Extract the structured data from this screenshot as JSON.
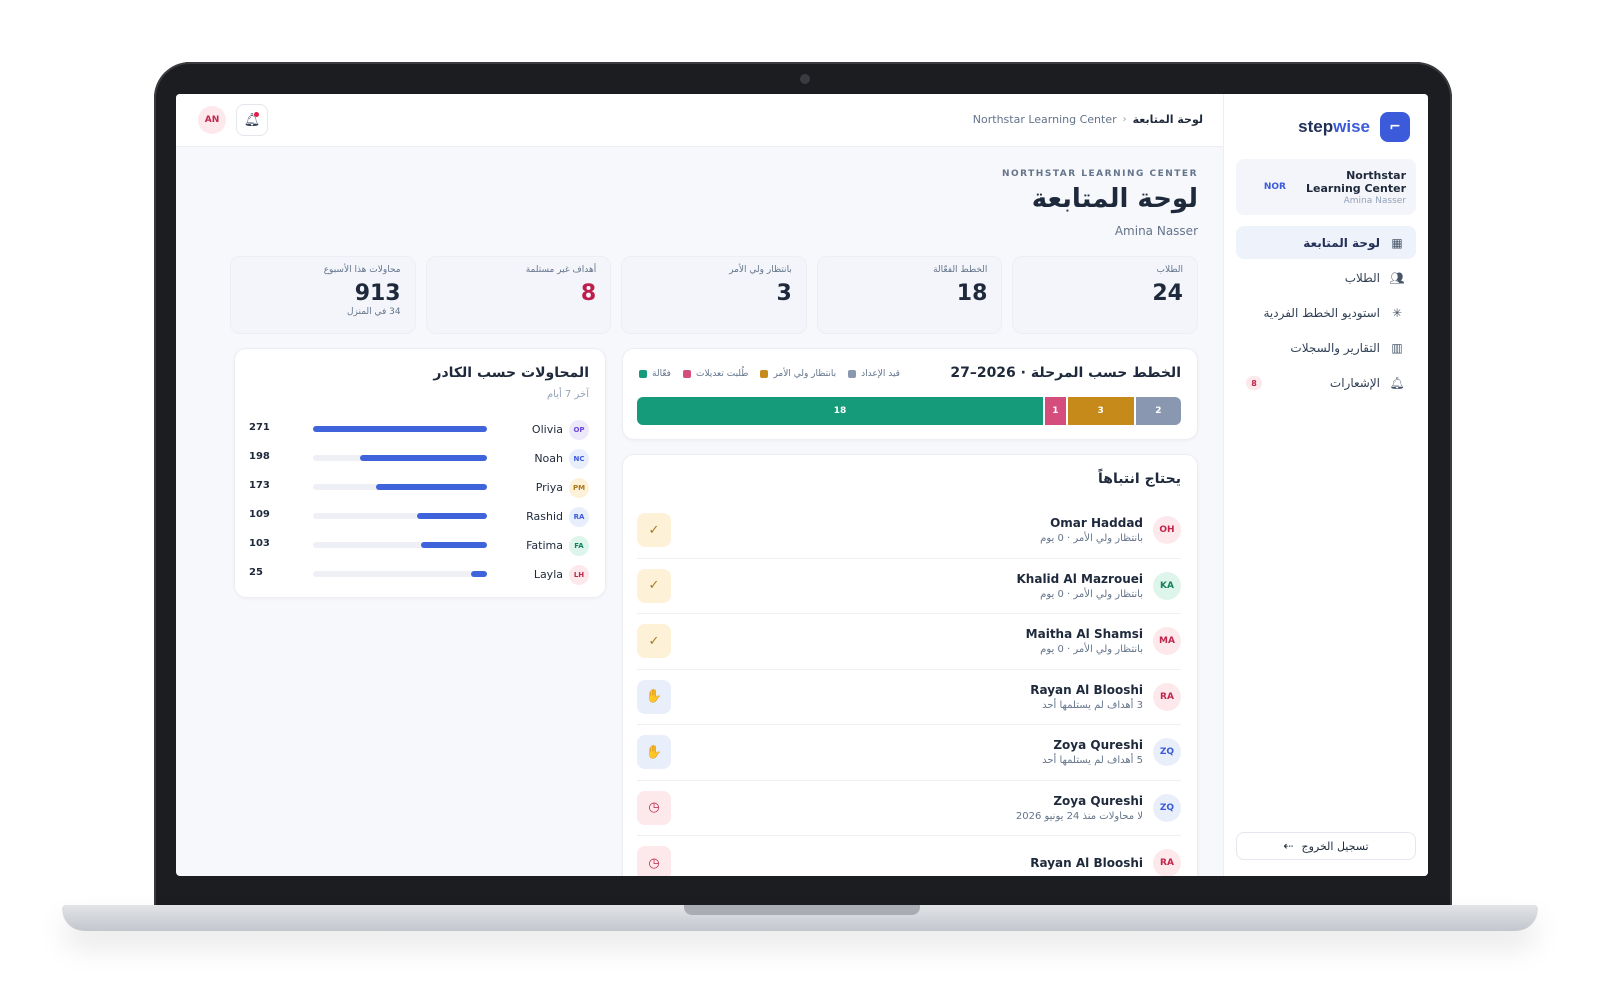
{
  "brand": {
    "name_prefix": "step",
    "name_suffix": "wise"
  },
  "org": {
    "abbr": "NOR",
    "name": "Northstar Learning Center",
    "user": "Amina Nasser"
  },
  "nav": [
    {
      "label": "لوحة المتابعة",
      "icon": "grid-icon",
      "active": true
    },
    {
      "label": "الطلاب",
      "icon": "users-icon"
    },
    {
      "label": "استوديو الخطط الفردية",
      "icon": "sparkle-icon"
    },
    {
      "label": "التقارير والسجلات",
      "icon": "bar-chart-icon"
    },
    {
      "label": "الإشعارات",
      "icon": "bell-icon",
      "badge": "8"
    }
  ],
  "logout_label": "تسجيل الخروج",
  "breadcrumb": {
    "org": "Northstar Learning Center",
    "current": "لوحة المتابعة"
  },
  "top_avatar": "AN",
  "header": {
    "overline": "NORTHSTAR LEARNING CENTER",
    "title": "لوحة المتابعة",
    "user": "Amina Nasser"
  },
  "stats": [
    {
      "label": "الطلاب",
      "value": "24",
      "sub": ""
    },
    {
      "label": "الخطط الفعّالة",
      "value": "18",
      "sub": ""
    },
    {
      "label": "بانتظار ولي الأمر",
      "value": "3",
      "sub": ""
    },
    {
      "label": "أهداف غير مستلمة",
      "value": "8",
      "sub": "",
      "accent": "#be1d4b"
    },
    {
      "label": "محاولات هذا الأسبوع",
      "value": "913",
      "sub": "34 في المنزل"
    }
  ],
  "plans": {
    "title": "الخطط حسب المرحلة · 2026–27",
    "legend": [
      {
        "label": "قيد الإعداد",
        "color": "#8a97b1"
      },
      {
        "label": "بانتظار ولي الأمر",
        "color": "#c58a1a"
      },
      {
        "label": "طُلبت تعديلات",
        "color": "#d44d7c"
      },
      {
        "label": "فعّالة",
        "color": "#159a7a"
      }
    ],
    "segments": [
      {
        "label": "18",
        "value": 18,
        "color": "#159a7a"
      },
      {
        "label": "1",
        "value": 1,
        "color": "#d44d7c"
      },
      {
        "label": "3",
        "value": 3,
        "color": "#c58a1a"
      },
      {
        "label": "2",
        "value": 2,
        "color": "#8a97b1"
      }
    ]
  },
  "attention": {
    "title": "يحتاج انتباهاً",
    "items": [
      {
        "initials": "OH",
        "name": "Omar Haddad",
        "sub": "بانتظار ولي الأمر · 0 يوم",
        "avatar_bg": "#fde8ec",
        "avatar_fg": "#c0264b",
        "action": "check-icon",
        "action_glyph": "✓",
        "action_style": "amber"
      },
      {
        "initials": "KA",
        "name": "Khalid Al Mazrouei",
        "sub": "بانتظار ولي الأمر · 0 يوم",
        "avatar_bg": "#def5ec",
        "avatar_fg": "#14805f",
        "action": "check-icon",
        "action_glyph": "✓",
        "action_style": "amber"
      },
      {
        "initials": "MA",
        "name": "Maitha Al Shamsi",
        "sub": "بانتظار ولي الأمر · 0 يوم",
        "avatar_bg": "#fde8ec",
        "avatar_fg": "#c0264b",
        "action": "check-icon",
        "action_glyph": "✓",
        "action_style": "amber"
      },
      {
        "initials": "RA",
        "name": "Rayan Al Blooshi",
        "sub": "3 أهداف لم يستلمها أحد",
        "avatar_bg": "#fde8ec",
        "avatar_fg": "#c0264b",
        "action": "hand-icon",
        "action_glyph": "✋",
        "action_style": "blue"
      },
      {
        "initials": "ZQ",
        "name": "Zoya Qureshi",
        "sub": "5 أهداف لم يستلمها أحد",
        "avatar_bg": "#e9eefb",
        "avatar_fg": "#3b5bdb",
        "action": "hand-icon",
        "action_glyph": "✋",
        "action_style": "blue"
      },
      {
        "initials": "ZQ",
        "name": "Zoya Qureshi",
        "sub": "لا محاولات منذ 24 يونيو 2026",
        "avatar_bg": "#e9eefb",
        "avatar_fg": "#3b5bdb",
        "action": "clock-icon",
        "action_glyph": "◷",
        "action_style": "pink"
      },
      {
        "initials": "RA",
        "name": "Rayan Al Blooshi",
        "sub": "",
        "avatar_bg": "#fde8ec",
        "avatar_fg": "#c0264b",
        "action": "clock-icon",
        "action_glyph": "◷",
        "action_style": "pink"
      }
    ]
  },
  "staff": {
    "title": "المحاولات حسب الكادر",
    "subtitle": "آخر 7 أيام",
    "max": 271,
    "rows": [
      {
        "initials": "OP",
        "name": "Olivia",
        "value": 271,
        "avatar_bg": "#ede9fb",
        "avatar_fg": "#6b47d6"
      },
      {
        "initials": "NC",
        "name": "Noah",
        "value": 198,
        "avatar_bg": "#e9eefb",
        "avatar_fg": "#3b5bdb"
      },
      {
        "initials": "PM",
        "name": "Priya",
        "value": 173,
        "avatar_bg": "#fdf1d8",
        "avatar_fg": "#a7791b"
      },
      {
        "initials": "RA",
        "name": "Rashid",
        "value": 109,
        "avatar_bg": "#e9eefb",
        "avatar_fg": "#3b5bdb"
      },
      {
        "initials": "FA",
        "name": "Fatima",
        "value": 103,
        "avatar_bg": "#def5ec",
        "avatar_fg": "#14805f"
      },
      {
        "initials": "LH",
        "name": "Layla",
        "value": 25,
        "avatar_bg": "#fde8ec",
        "avatar_fg": "#c0264b"
      }
    ]
  }
}
